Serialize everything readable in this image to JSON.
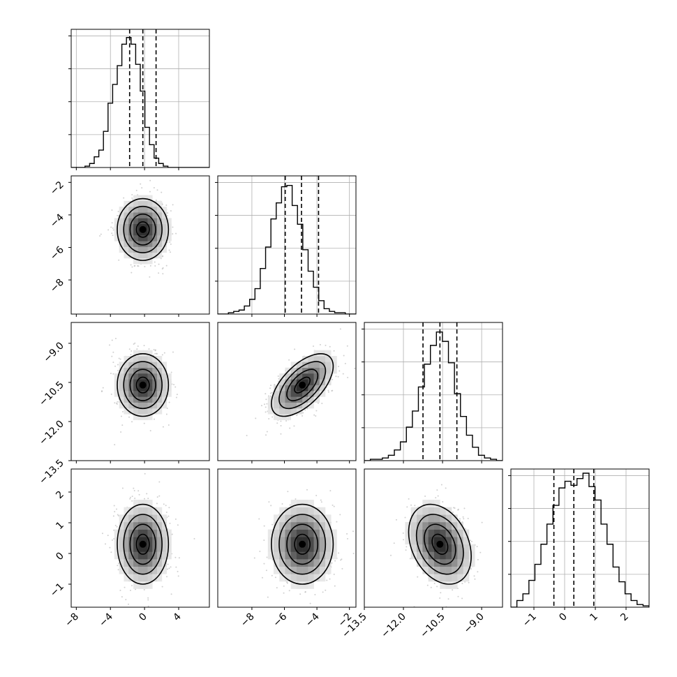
{
  "chart_data": {
    "type": "corner",
    "parameters": 4,
    "grid": true,
    "quantile_lines": "dashed",
    "contour_color": "#000000",
    "hist_color": "#000000",
    "scatter_color": "#b0b0b0",
    "grid_color": "#b0b0b0",
    "axes": [
      {
        "range": [
          -8.6,
          7.6
        ],
        "ticks": [
          -8,
          -4,
          0,
          4
        ],
        "tick_labels": [
          "−8",
          "−4",
          "0",
          "4"
        ],
        "mean": -0.2,
        "sd": 1.5,
        "quantiles": [
          -1.75,
          -0.2,
          1.35
        ],
        "hist_bins": [
          0,
          0,
          0,
          0.01,
          0.03,
          0.08,
          0.13,
          0.27,
          0.48,
          0.62,
          0.76,
          0.92,
          0.97,
          0.92,
          0.77,
          0.57,
          0.3,
          0.17,
          0.07,
          0.03,
          0.01,
          0,
          0,
          0,
          0,
          0,
          0,
          0,
          0,
          0
        ]
      },
      {
        "range": [
          -10.1,
          -1.6
        ],
        "ticks": [
          -8,
          -6,
          -4,
          -2
        ],
        "tick_labels": [
          "−8",
          "−6",
          "−4",
          "−2"
        ],
        "mean": -4.9,
        "sd": 0.95,
        "quantiles": [
          -5.95,
          -4.95,
          -3.9
        ],
        "hist_bins": [
          0,
          0,
          0.01,
          0.02,
          0.03,
          0.06,
          0.11,
          0.19,
          0.34,
          0.5,
          0.71,
          0.83,
          0.95,
          0.96,
          0.81,
          0.67,
          0.48,
          0.32,
          0.2,
          0.1,
          0.04,
          0.02,
          0.01,
          0.01,
          0,
          0
        ]
      },
      {
        "range": [
          -13.5,
          -8.2
        ],
        "ticks": [
          -13.5,
          -12.0,
          -10.5,
          -9.0
        ],
        "tick_labels": [
          "−13.5",
          "−12.0",
          "−10.5",
          "−9.0"
        ],
        "mean": -10.6,
        "sd": 0.6,
        "quantiles": [
          -11.25,
          -10.6,
          -9.95
        ],
        "hist_bins": [
          0,
          0.01,
          0.01,
          0.02,
          0.04,
          0.08,
          0.14,
          0.25,
          0.37,
          0.55,
          0.72,
          0.86,
          0.96,
          0.89,
          0.73,
          0.5,
          0.33,
          0.19,
          0.1,
          0.04,
          0.02,
          0.01,
          0
        ]
      },
      {
        "range": [
          -1.75,
          2.75
        ],
        "ticks": [
          -1,
          0,
          1,
          2
        ],
        "tick_labels": [
          "−1",
          "0",
          "1",
          "2"
        ],
        "mean": 0.3,
        "sd": 0.65,
        "quantiles": [
          -0.35,
          0.3,
          0.95
        ],
        "hist_bins": [
          0,
          0.05,
          0.1,
          0.2,
          0.32,
          0.47,
          0.62,
          0.76,
          0.89,
          0.94,
          0.91,
          0.96,
          1.0,
          0.9,
          0.8,
          0.62,
          0.47,
          0.3,
          0.19,
          0.1,
          0.05,
          0.02,
          0.01
        ]
      }
    ],
    "correlations": [
      [
        1,
        0,
        0,
        0
      ],
      [
        0,
        1,
        0.6,
        0
      ],
      [
        0,
        0.6,
        1,
        -0.3
      ],
      [
        0,
        0,
        -0.3,
        1
      ]
    ],
    "diagonal_y_ticks": 4,
    "contour_levels": [
      0.5,
      1.0,
      1.5,
      2.0
    ],
    "scatter_points": 700,
    "density_bins": 14
  }
}
